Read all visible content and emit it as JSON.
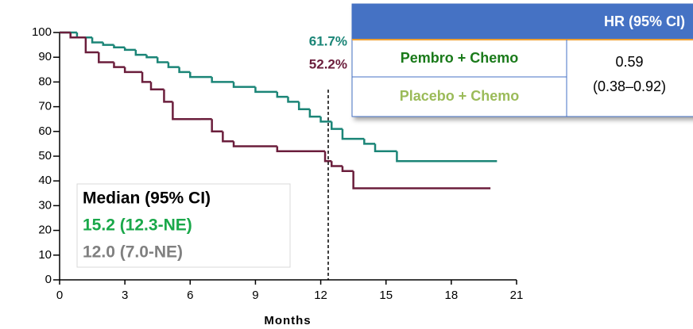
{
  "chart_data": {
    "type": "line",
    "step": true,
    "x_label": "Months",
    "xlim": [
      0,
      21
    ],
    "xticks": [
      0,
      3,
      6,
      9,
      12,
      15,
      18,
      21
    ],
    "ylim": [
      0,
      100
    ],
    "yticks": [
      0,
      10,
      20,
      30,
      40,
      50,
      60,
      70,
      80,
      90,
      100
    ],
    "series": [
      {
        "name": "Pembro + Chemo",
        "color": "#1b8577",
        "x": [
          0,
          0.8,
          1.5,
          2,
          2.5,
          3,
          3.5,
          4,
          4.5,
          5,
          5.5,
          6,
          7,
          8,
          9,
          10,
          10.5,
          11,
          11.5,
          12,
          12.5,
          13,
          14,
          14.5,
          15.5,
          20.1
        ],
        "values": [
          100,
          98,
          96,
          95,
          94,
          93,
          91,
          90,
          88,
          86,
          84,
          82,
          80,
          78,
          76,
          74,
          72,
          69,
          66,
          64,
          61,
          57,
          55,
          52,
          48,
          48
        ]
      },
      {
        "name": "Placebo + Chemo",
        "color": "#6b1e3c",
        "x": [
          0,
          0.5,
          1.2,
          1.8,
          2.5,
          3,
          3.8,
          4.2,
          4.8,
          5.2,
          6.5,
          7,
          7.5,
          8,
          10,
          12.2,
          12.5,
          13,
          13.5,
          19.8
        ],
        "values": [
          100,
          98,
          92,
          88,
          86,
          84,
          80,
          77,
          72,
          65,
          65,
          60,
          56,
          54,
          52,
          48,
          46,
          44,
          37,
          37
        ]
      }
    ],
    "annotations": [
      "61.7%",
      "52.2%"
    ],
    "median_box": {
      "title": "Median (95% CI)",
      "rows": [
        "15.2 (12.3-NE)",
        "12.0 (7.0-NE)"
      ]
    },
    "hr_table": {
      "header": "HR (95% CI)",
      "rows": [
        "Pembro + Chemo",
        "Placebo + Chemo"
      ],
      "value": "0.59",
      "ci": "(0.38–0.92)"
    }
  }
}
